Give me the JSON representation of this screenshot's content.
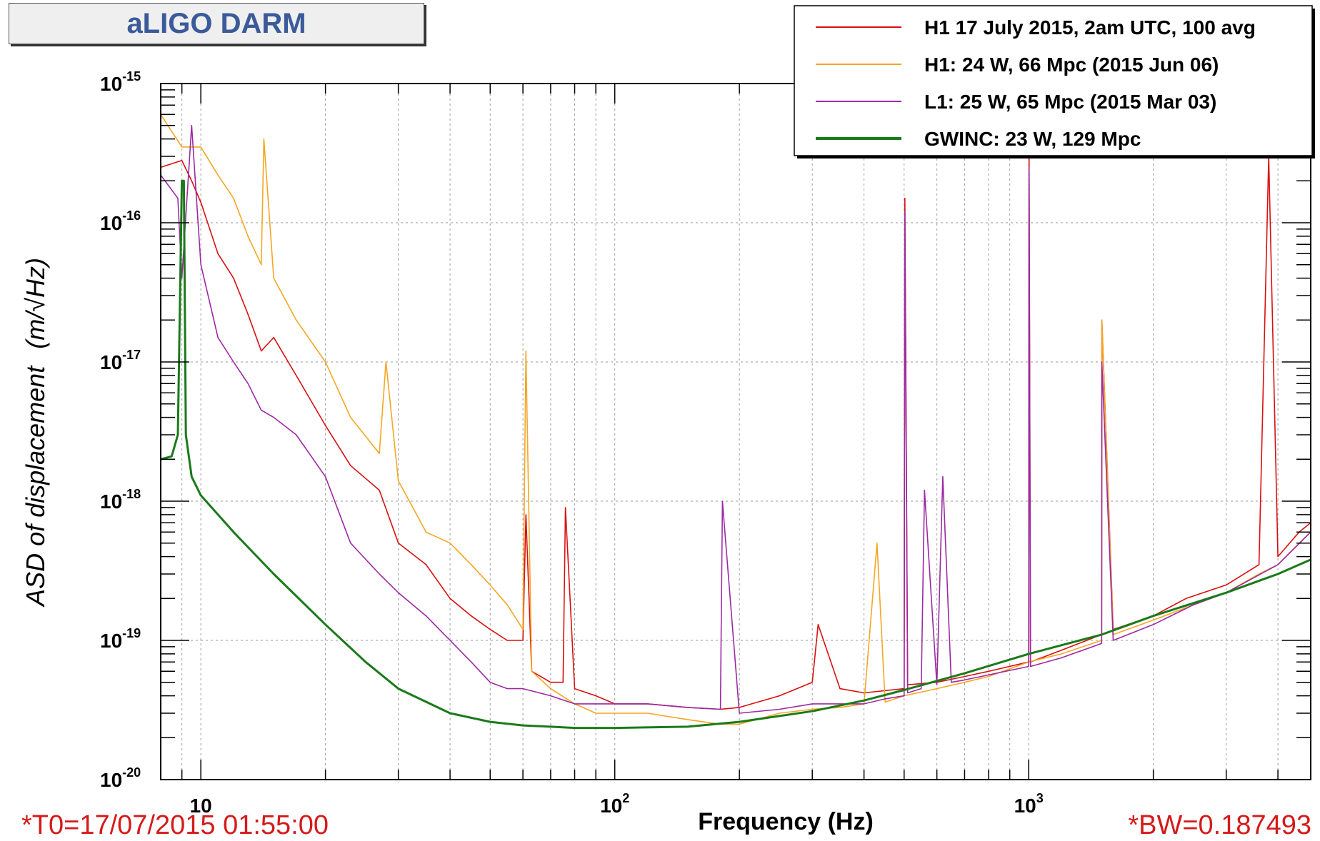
{
  "title": "aLIGO DARM",
  "footer_left": "*T0=17/07/2015 01:55:00",
  "footer_right": "*BW=0.187493",
  "chart_data": {
    "type": "line",
    "xlabel": "Frequency (Hz)",
    "ylabel_prefix": "ASD of displacement",
    "ylabel_units": "(m/√Hz)",
    "x_scale": "log",
    "y_scale": "log",
    "xlim": [
      8,
      4800
    ],
    "ylim": [
      1e-20,
      1e-15
    ],
    "grid": true,
    "legend_position": "top-right",
    "x_ticks": [
      {
        "value": 10,
        "base": "10",
        "exp": ""
      },
      {
        "value": 100,
        "base": "10",
        "exp": "2"
      },
      {
        "value": 1000,
        "base": "10",
        "exp": "3"
      }
    ],
    "y_ticks": [
      {
        "value": 1e-15,
        "base": "10",
        "exp": "-15"
      },
      {
        "value": 1e-16,
        "base": "10",
        "exp": "-16"
      },
      {
        "value": 1e-17,
        "base": "10",
        "exp": "-17"
      },
      {
        "value": 1e-18,
        "base": "10",
        "exp": "-18"
      },
      {
        "value": 1e-19,
        "base": "10",
        "exp": "-19"
      },
      {
        "value": 1e-20,
        "base": "10",
        "exp": "-20"
      }
    ],
    "series": [
      {
        "name": "H1 17 July 2015, 2am UTC, 100 avg",
        "color": "#d81010",
        "x": [
          8,
          9,
          9.5,
          10,
          11,
          12,
          13,
          14,
          15,
          17,
          20,
          23,
          27,
          30,
          35,
          40,
          45,
          50,
          55,
          60,
          61,
          63,
          70,
          75,
          76,
          80,
          90,
          100,
          120,
          150,
          180,
          200,
          250,
          300,
          310,
          350,
          400,
          500,
          502,
          510,
          600,
          700,
          800,
          1000,
          1002,
          1010,
          1200,
          1500,
          1502,
          1600,
          2000,
          2400,
          3000,
          3600,
          3800,
          4000,
          4500,
          4800
        ],
        "y": [
          2.5e-16,
          2.8e-16,
          2e-16,
          1.4e-16,
          6e-17,
          4e-17,
          2.2e-17,
          1.2e-17,
          1.5e-17,
          8e-18,
          3.5e-18,
          1.8e-18,
          1.2e-18,
          5e-19,
          3.5e-19,
          2e-19,
          1.5e-19,
          1.2e-19,
          1e-19,
          1e-19,
          8e-19,
          6e-20,
          5e-20,
          5e-20,
          9e-19,
          4.5e-20,
          4e-20,
          3.5e-20,
          3.5e-20,
          3.3e-20,
          3.2e-20,
          3.3e-20,
          4e-20,
          5e-20,
          1.3e-19,
          4.5e-20,
          4.2e-20,
          4.5e-20,
          1.5e-16,
          4.8e-20,
          5e-20,
          5.5e-20,
          6e-20,
          7e-20,
          3e-16,
          7e-20,
          8.5e-20,
          1.1e-19,
          2e-17,
          1.2e-19,
          1.5e-19,
          2e-19,
          2.5e-19,
          3.5e-19,
          3e-16,
          4e-19,
          6e-19,
          7e-19
        ]
      },
      {
        "name": "H1: 24 W, 66 Mpc (2015 Jun 06)",
        "color": "#f5a623",
        "x": [
          8,
          9,
          10,
          11,
          12,
          13,
          14,
          14.2,
          15,
          17,
          20,
          23,
          27,
          28,
          30,
          35,
          40,
          45,
          50,
          55,
          60,
          61,
          63,
          70,
          80,
          90,
          100,
          120,
          150,
          180,
          200,
          250,
          300,
          350,
          400,
          430,
          450,
          500,
          600,
          700,
          800,
          1000,
          1200,
          1500,
          1502,
          1600,
          2000,
          2500,
          3000,
          3600,
          4000,
          4500,
          4800
        ],
        "y": [
          6e-16,
          3.5e-16,
          3.5e-16,
          2.2e-16,
          1.5e-16,
          8e-17,
          5e-17,
          4e-16,
          4e-17,
          2e-17,
          1e-17,
          4e-18,
          2.2e-18,
          1e-17,
          1.4e-18,
          6e-19,
          5e-19,
          3.5e-19,
          2.5e-19,
          1.8e-19,
          1.2e-19,
          1.2e-17,
          6e-20,
          4.5e-20,
          3.5e-20,
          3e-20,
          3e-20,
          3e-20,
          2.7e-20,
          2.5e-20,
          2.5e-20,
          3e-20,
          3.2e-20,
          3.3e-20,
          3.5e-20,
          5e-19,
          3.6e-20,
          4e-20,
          4.5e-20,
          5e-20,
          5.5e-20,
          7e-20,
          8e-20,
          1e-19,
          2e-17,
          1.1e-19,
          1.4e-19,
          1.8e-19,
          2.2e-19,
          3e-19,
          3.5e-19,
          5e-19,
          6e-19
        ]
      },
      {
        "name": "L1: 25 W, 65 Mpc (2015 Mar 03)",
        "color": "#9b2aa3",
        "x": [
          8,
          8.8,
          9,
          9.5,
          10,
          11,
          12,
          13,
          14,
          15,
          17,
          20,
          23,
          27,
          30,
          35,
          40,
          45,
          50,
          55,
          60,
          70,
          80,
          90,
          100,
          120,
          150,
          180,
          182,
          200,
          250,
          300,
          350,
          400,
          450,
          500,
          502,
          510,
          550,
          560,
          600,
          620,
          650,
          700,
          1000,
          1002,
          1010,
          1200,
          1500,
          1502,
          1600,
          2000,
          2500,
          3000,
          4000,
          4800
        ],
        "y": [
          2.2e-16,
          1.5e-16,
          4e-17,
          5e-16,
          5e-17,
          1.5e-17,
          1e-17,
          7e-18,
          4.5e-18,
          4e-18,
          3e-18,
          1.5e-18,
          5e-19,
          3e-19,
          2.2e-19,
          1.5e-19,
          1e-19,
          7e-20,
          5e-20,
          4.5e-20,
          4.5e-20,
          4e-20,
          3.5e-20,
          3.5e-20,
          3.5e-20,
          3.5e-20,
          3.3e-20,
          3.2e-20,
          1e-18,
          3e-20,
          3.2e-20,
          3.5e-20,
          3.5e-20,
          3.5e-20,
          3.8e-20,
          4e-20,
          1.2e-16,
          4.2e-20,
          4.5e-20,
          1.2e-18,
          4.8e-20,
          1.5e-18,
          5e-20,
          5.2e-20,
          6.5e-20,
          2.5e-16,
          6.5e-20,
          7.5e-20,
          9.5e-20,
          1e-17,
          1e-19,
          1.3e-19,
          1.8e-19,
          2.2e-19,
          3.5e-19,
          6e-19
        ]
      },
      {
        "name": "GWINC: 23 W, 129 Mpc",
        "color": "#1a7a1a",
        "x": [
          8,
          8.5,
          8.8,
          9.0,
          9.1,
          9.2,
          9.5,
          10,
          12,
          15,
          20,
          25,
          30,
          40,
          50,
          60,
          70,
          80,
          100,
          150,
          200,
          300,
          400,
          500,
          700,
          1000,
          1500,
          2000,
          3000,
          4000,
          4800
        ],
        "y": [
          2e-18,
          2.1e-18,
          3e-18,
          2e-16,
          2e-16,
          3e-18,
          1.5e-18,
          1.1e-18,
          6e-19,
          3e-19,
          1.3e-19,
          7e-20,
          4.5e-20,
          3e-20,
          2.6e-20,
          2.45e-20,
          2.4e-20,
          2.35e-20,
          2.35e-20,
          2.4e-20,
          2.6e-20,
          3.1e-20,
          3.7e-20,
          4.4e-20,
          5.8e-20,
          8e-20,
          1.1e-19,
          1.5e-19,
          2.2e-19,
          3e-19,
          3.8e-19
        ]
      }
    ]
  }
}
